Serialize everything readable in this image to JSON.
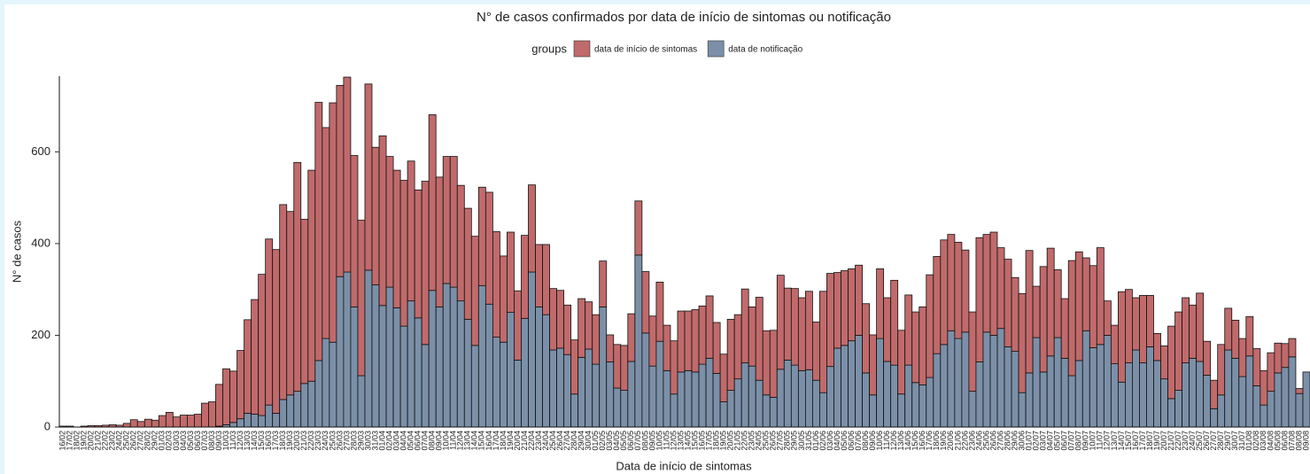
{
  "chart_data": {
    "type": "stacked_bar",
    "title": "N° de casos confirmados por data de início de sintomas ou notificação",
    "legend_title": "groups",
    "x_label": "Data de início de sintomas",
    "y_label": "N° de casos",
    "categories": [
      "16/02",
      "17/02",
      "18/02",
      "19/02",
      "20/02",
      "21/02",
      "22/02",
      "23/02",
      "24/02",
      "25/02",
      "26/02",
      "27/02",
      "28/02",
      "29/02",
      "01/03",
      "02/03",
      "03/03",
      "04/03",
      "05/03",
      "06/03",
      "07/03",
      "08/03",
      "09/03",
      "10/03",
      "11/03",
      "12/03",
      "13/03",
      "14/03",
      "15/03",
      "16/03",
      "17/03",
      "18/03",
      "19/03",
      "20/03",
      "21/03",
      "22/03",
      "23/03",
      "24/03",
      "25/03",
      "26/03",
      "27/03",
      "28/03",
      "29/03",
      "30/03",
      "31/03",
      "01/04",
      "02/04",
      "03/04",
      "04/04",
      "05/04",
      "06/04",
      "07/04",
      "08/04",
      "09/04",
      "10/04",
      "11/04",
      "12/04",
      "13/04",
      "14/04",
      "15/04",
      "16/04",
      "17/04",
      "18/04",
      "19/04",
      "20/04",
      "21/04",
      "22/04",
      "23/04",
      "24/04",
      "25/04",
      "26/04",
      "27/04",
      "28/04",
      "29/04",
      "30/04",
      "01/05",
      "02/05",
      "03/05",
      "04/05",
      "05/05",
      "06/05",
      "07/05",
      "08/05",
      "09/05",
      "10/05",
      "11/05",
      "12/05",
      "13/05",
      "14/05",
      "15/05",
      "16/05",
      "17/05",
      "18/05",
      "19/05",
      "20/05",
      "21/05",
      "22/05",
      "23/05",
      "24/05",
      "25/05",
      "26/05",
      "27/05",
      "28/05",
      "29/05",
      "30/05",
      "31/05",
      "01/06",
      "02/06",
      "03/06",
      "04/06",
      "05/06",
      "06/06",
      "07/06",
      "08/06",
      "09/06",
      "10/06",
      "11/06",
      "12/06",
      "13/06",
      "14/06",
      "15/06",
      "16/06",
      "17/06",
      "18/06",
      "19/06",
      "20/06",
      "21/06",
      "22/06",
      "23/06",
      "24/06",
      "25/06",
      "26/06",
      "27/06",
      "28/06",
      "29/06",
      "30/06",
      "01/07",
      "02/07",
      "03/07",
      "04/07",
      "05/07",
      "06/07",
      "07/07",
      "08/07",
      "09/07",
      "10/07",
      "11/07",
      "12/07",
      "13/07",
      "14/07",
      "15/07",
      "16/07",
      "17/07",
      "18/07",
      "19/07",
      "20/07",
      "21/07",
      "22/07",
      "23/07",
      "24/07",
      "25/07",
      "26/07",
      "27/07",
      "28/07",
      "29/07",
      "30/07",
      "31/07",
      "01/08",
      "02/08",
      "03/08",
      "04/08",
      "05/08",
      "06/08",
      "07/08",
      "08/08",
      "09/08"
    ],
    "series": [
      {
        "name": "data de início de sintomas",
        "color": "#c06a6b",
        "values": [
          2,
          2,
          0,
          2,
          3,
          3,
          4,
          5,
          4,
          8,
          16,
          12,
          17,
          15,
          25,
          32,
          22,
          26,
          26,
          28,
          52,
          55,
          91,
          122,
          112,
          149,
          204,
          250,
          308,
          362,
          357,
          425,
          400,
          499,
          358,
          460,
          563,
          460,
          522,
          417,
          425,
          330,
          339,
          406,
          300,
          370,
          285,
          300,
          318,
          305,
          279,
          356,
          383,
          283,
          277,
          285,
          252,
          242,
          238,
          215,
          244,
          230,
          188,
          175,
          151,
          181,
          190,
          136,
          153,
          134,
          126,
          108,
          118,
          128,
          103,
          108,
          100,
          59,
          95,
          98,
          104,
          118,
          134,
          109,
          129,
          99,
          116,
          133,
          130,
          136,
          127,
          136,
          111,
          104,
          155,
          140,
          161,
          129,
          181,
          140,
          146,
          205,
          157,
          167,
          159,
          171,
          127,
          221,
          203,
          165,
          163,
          157,
          153,
          151,
          131,
          152,
          139,
          185,
          139,
          153,
          154,
          170,
          224,
          212,
          228,
          210,
          210,
          179,
          173,
          271,
          213,
          225,
          176,
          191,
          161,
          216,
          267,
          112,
          230,
          235,
          148,
          130,
          251,
          237,
          159,
          179,
          211,
          75,
          84,
          197,
          160,
          114,
          147,
          112,
          59,
          72,
          158,
          171,
          142,
          116,
          149,
          74,
          62,
          110,
          91,
          83,
          83,
          86,
          81,
          75,
          84,
          65,
          52,
          40,
          11,
          0
        ]
      },
      {
        "name": "data de notificação",
        "color": "#7b90a8",
        "values": [
          0,
          0,
          0,
          0,
          0,
          0,
          0,
          0,
          0,
          0,
          0,
          0,
          0,
          0,
          0,
          0,
          0,
          0,
          0,
          0,
          0,
          0,
          2,
          5,
          10,
          18,
          30,
          28,
          25,
          48,
          30,
          60,
          70,
          78,
          95,
          100,
          145,
          193,
          185,
          328,
          338,
          262,
          112,
          342,
          310,
          265,
          305,
          260,
          220,
          275,
          238,
          180,
          298,
          262,
          313,
          305,
          275,
          235,
          178,
          308,
          268,
          196,
          185,
          250,
          146,
          237,
          338,
          262,
          245,
          168,
          172,
          158,
          72,
          152,
          170,
          137,
          262,
          142,
          85,
          80,
          143,
          375,
          205,
          133,
          187,
          123,
          72,
          120,
          123,
          120,
          137,
          150,
          117,
          55,
          80,
          105,
          140,
          133,
          102,
          70,
          65,
          126,
          146,
          135,
          123,
          125,
          102,
          75,
          132,
          172,
          178,
          188,
          200,
          118,
          70,
          193,
          143,
          135,
          72,
          135,
          97,
          92,
          108,
          160,
          180,
          210,
          193,
          207,
          78,
          142,
          207,
          200,
          215,
          175,
          165,
          75,
          118,
          195,
          120,
          155,
          195,
          150,
          112,
          145,
          210,
          173,
          180,
          200,
          138,
          98,
          140,
          168,
          140,
          175,
          145,
          105,
          62,
          80,
          140,
          150,
          143,
          113,
          40,
          70,
          168,
          150,
          110,
          155,
          90,
          48,
          78,
          118,
          130,
          153,
          73,
          120
        ]
      }
    ],
    "ylim": [
      0,
      765
    ],
    "yticks": [
      0,
      200,
      400,
      600
    ]
  }
}
